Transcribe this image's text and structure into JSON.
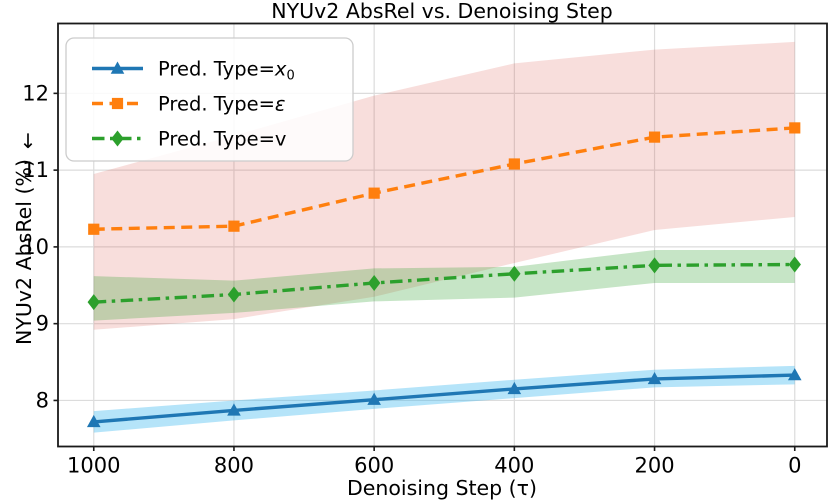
{
  "chart_data": {
    "type": "line",
    "title": "NYUv2 AbsRel vs. Denoising Step",
    "xlabel": "Denoising Step (τ)",
    "ylabel": "NYUv2 AbsRel (%) ↓",
    "ylabel_main": "NYUv2 AbsRel (%)",
    "ylabel_arrow": "↓",
    "x": [
      1000,
      800,
      600,
      400,
      200,
      0
    ],
    "xticks": [
      "1000",
      "800",
      "600",
      "400",
      "200",
      "0"
    ],
    "yticks": [
      "8",
      "9",
      "10",
      "11",
      "12"
    ],
    "ytick_values": [
      8,
      9,
      10,
      11,
      12
    ],
    "x_axis_reversed": true,
    "xlim": [
      1051,
      -46
    ],
    "ylim": [
      7.4,
      12.91
    ],
    "grid": true,
    "legend_position": "upper left",
    "series": [
      {
        "name": "Pred. Type=x₀",
        "label_prefix": "Pred. Type=",
        "label_var": "x",
        "label_var_italic": true,
        "label_sub": "0",
        "color": "#1f77b4",
        "band_color": "rgba(61,183,238,0.38)",
        "line_style": "solid",
        "marker": "triangle",
        "values": [
          7.72,
          7.87,
          8.01,
          8.15,
          8.28,
          8.33
        ],
        "band_lower": [
          7.58,
          7.74,
          7.89,
          8.03,
          8.17,
          8.21
        ],
        "band_upper": [
          7.86,
          8.0,
          8.13,
          8.27,
          8.4,
          8.45
        ]
      },
      {
        "name": "Pred. Type=ε",
        "label_prefix": "Pred. Type=",
        "label_var": "ε",
        "label_var_italic": true,
        "label_sub": "",
        "color": "#ff7f0e",
        "band_color": "rgba(213,60,47,0.17)",
        "line_style": "dashed",
        "marker": "square",
        "values": [
          10.23,
          10.27,
          10.7,
          11.08,
          11.43,
          11.55
        ],
        "band_lower": [
          8.92,
          9.06,
          9.35,
          9.79,
          10.22,
          10.39
        ],
        "band_upper": [
          10.95,
          11.45,
          11.97,
          12.39,
          12.57,
          12.67
        ]
      },
      {
        "name": "Pred. Type=v",
        "label_prefix": "Pred. Type=",
        "label_var": "v",
        "label_var_italic": false,
        "label_sub": "",
        "color": "#2ca02c",
        "band_color": "rgba(44,160,44,0.27)",
        "line_style": "dashdot",
        "marker": "diamond",
        "values": [
          9.28,
          9.38,
          9.53,
          9.65,
          9.76,
          9.77
        ],
        "band_lower": [
          9.04,
          9.14,
          9.29,
          9.34,
          9.53,
          9.53
        ],
        "band_upper": [
          9.62,
          9.56,
          9.72,
          9.74,
          9.96,
          9.96
        ]
      }
    ],
    "style": {
      "grid_color": "#dcdcdc",
      "spine_color": "#1a1a1a",
      "legend_border_color": "#cccccc",
      "legend_bg": "rgba(255,255,255,0.85)"
    }
  }
}
